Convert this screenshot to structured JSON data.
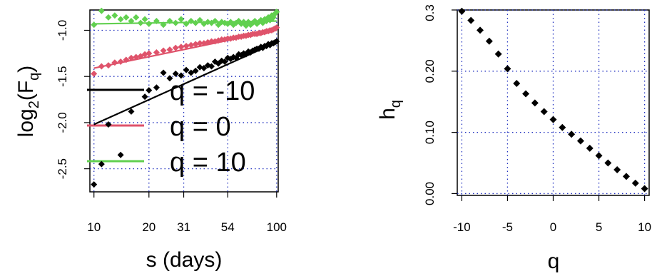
{
  "chart_data": [
    {
      "type": "scatter",
      "title": "",
      "xlabel": "s (days)",
      "ylabel": "log2(Fq)",
      "ylabel_parts": {
        "base": "log",
        "subscript": "2",
        "paren_open": "(F",
        "paren_sub": "q",
        "paren_close": ")"
      },
      "x_scale": "log2",
      "xlim": [
        9.5,
        102
      ],
      "ylim": [
        -2.75,
        -0.78
      ],
      "x_ticks": [
        10,
        20,
        31,
        54,
        100
      ],
      "x_tick_labels": [
        "10",
        "20",
        "31",
        "54",
        "100"
      ],
      "y_ticks": [
        -1.0,
        -1.5,
        -2.0,
        -2.5
      ],
      "y_tick_labels": [
        "-1.0",
        "-1.5",
        "-2.0",
        "-2.5"
      ],
      "grid": true,
      "legend": {
        "placement": "center-left",
        "entries": [
          {
            "label": "q = -10",
            "color": "#000000"
          },
          {
            "label": "q = 0",
            "color": "#DF536B"
          },
          {
            "label": "q = 10",
            "color": "#61D04F"
          }
        ]
      },
      "series": [
        {
          "name": "q = -10",
          "color": "#000000",
          "x": [
            10,
            11,
            12,
            14,
            16,
            19,
            20,
            22,
            24,
            26,
            28,
            30,
            32,
            34,
            36,
            38,
            40,
            42,
            44,
            46,
            48,
            50,
            52,
            54,
            56,
            58,
            60,
            62,
            64,
            66,
            68,
            70,
            72,
            74,
            76,
            78,
            80,
            82,
            84,
            86,
            88,
            90,
            92,
            94,
            96,
            98,
            100
          ],
          "y": [
            -2.67,
            -2.45,
            -2.02,
            -2.35,
            -1.88,
            -1.72,
            -1.65,
            -1.62,
            -1.46,
            -1.52,
            -1.47,
            -1.49,
            -1.43,
            -1.46,
            -1.44,
            -1.4,
            -1.41,
            -1.38,
            -1.39,
            -1.34,
            -1.36,
            -1.33,
            -1.34,
            -1.3,
            -1.31,
            -1.29,
            -1.3,
            -1.26,
            -1.27,
            -1.25,
            -1.26,
            -1.23,
            -1.24,
            -1.22,
            -1.21,
            -1.2,
            -1.2,
            -1.18,
            -1.19,
            -1.17,
            -1.17,
            -1.15,
            -1.16,
            -1.14,
            -1.14,
            -1.13,
            -1.12
          ],
          "fit": {
            "x": [
              10,
              100
            ],
            "y": [
              -2.02,
              -1.13
            ]
          }
        },
        {
          "name": "q = 0",
          "color": "#DF536B",
          "x": [
            10,
            11,
            12,
            13,
            14,
            15,
            16,
            17,
            18,
            19,
            20,
            22,
            24,
            26,
            28,
            30,
            32,
            34,
            36,
            38,
            40,
            42,
            44,
            46,
            48,
            50,
            52,
            54,
            56,
            58,
            60,
            62,
            64,
            66,
            68,
            70,
            72,
            74,
            76,
            78,
            80,
            82,
            84,
            86,
            88,
            90,
            92,
            94,
            96,
            98,
            100
          ],
          "y": [
            -1.47,
            -1.39,
            -1.38,
            -1.35,
            -1.34,
            -1.32,
            -1.3,
            -1.29,
            -1.28,
            -1.26,
            -1.25,
            -1.24,
            -1.22,
            -1.21,
            -1.19,
            -1.18,
            -1.17,
            -1.16,
            -1.15,
            -1.14,
            -1.14,
            -1.13,
            -1.12,
            -1.12,
            -1.11,
            -1.1,
            -1.1,
            -1.09,
            -1.09,
            -1.08,
            -1.08,
            -1.07,
            -1.07,
            -1.06,
            -1.06,
            -1.05,
            -1.05,
            -1.04,
            -1.04,
            -1.04,
            -1.03,
            -1.03,
            -1.02,
            -1.02,
            -1.01,
            -1.01,
            -1.0,
            -1.0,
            -0.99,
            -0.98,
            -0.97
          ],
          "fit": {
            "x": [
              10,
              100
            ],
            "y": [
              -1.41,
              -1.0
            ]
          }
        },
        {
          "name": "q = 10",
          "color": "#61D04F",
          "x": [
            10,
            11,
            12,
            13,
            14,
            15,
            16,
            17,
            18,
            19,
            20,
            22,
            24,
            26,
            28,
            30,
            32,
            34,
            36,
            38,
            40,
            42,
            44,
            46,
            48,
            50,
            52,
            54,
            56,
            58,
            60,
            62,
            64,
            66,
            68,
            70,
            72,
            74,
            76,
            78,
            80,
            82,
            84,
            86,
            88,
            90,
            92,
            94,
            96,
            98,
            100
          ],
          "y": [
            -0.94,
            -0.79,
            -0.86,
            -0.84,
            -0.88,
            -0.86,
            -0.9,
            -0.86,
            -0.92,
            -0.88,
            -0.93,
            -0.9,
            -0.94,
            -0.9,
            -0.92,
            -0.88,
            -0.93,
            -0.9,
            -0.92,
            -0.89,
            -0.93,
            -0.91,
            -0.92,
            -0.9,
            -0.94,
            -0.91,
            -0.92,
            -0.93,
            -0.91,
            -0.94,
            -0.92,
            -0.9,
            -0.93,
            -0.91,
            -0.95,
            -0.91,
            -0.94,
            -0.92,
            -0.9,
            -0.93,
            -0.91,
            -0.89,
            -0.92,
            -0.88,
            -0.9,
            -0.86,
            -0.89,
            -0.84,
            -0.86,
            -0.82,
            -0.8
          ],
          "fit": {
            "x": [
              10,
              100
            ],
            "y": [
              -0.93,
              -0.9
            ]
          }
        }
      ]
    },
    {
      "type": "scatter",
      "title": "",
      "xlabel": "q",
      "ylabel": "hq",
      "ylabel_parts": {
        "base": "h",
        "subscript": "q"
      },
      "xlim": [
        -10.5,
        10.5
      ],
      "ylim": [
        -0.003,
        0.3
      ],
      "x_ticks": [
        -10,
        -5,
        0,
        5,
        10
      ],
      "x_tick_labels": [
        "-10",
        "-5",
        "0",
        "5",
        "10"
      ],
      "y_ticks": [
        0.0,
        0.1,
        0.2,
        0.3
      ],
      "y_tick_labels": [
        "0.00",
        "0.10",
        "0.20",
        "0.3"
      ],
      "grid": true,
      "series": [
        {
          "color": "#000000",
          "x": [
            -10,
            -9,
            -8,
            -7,
            -6,
            -5,
            -4,
            -3,
            -2,
            -1,
            0,
            1,
            2,
            3,
            4,
            5,
            6,
            7,
            8,
            9,
            10
          ],
          "y": [
            0.298,
            0.283,
            0.267,
            0.249,
            0.228,
            0.204,
            0.18,
            0.163,
            0.148,
            0.134,
            0.121,
            0.108,
            0.097,
            0.086,
            0.074,
            0.062,
            0.05,
            0.039,
            0.028,
            0.017,
            0.008
          ]
        }
      ]
    }
  ]
}
